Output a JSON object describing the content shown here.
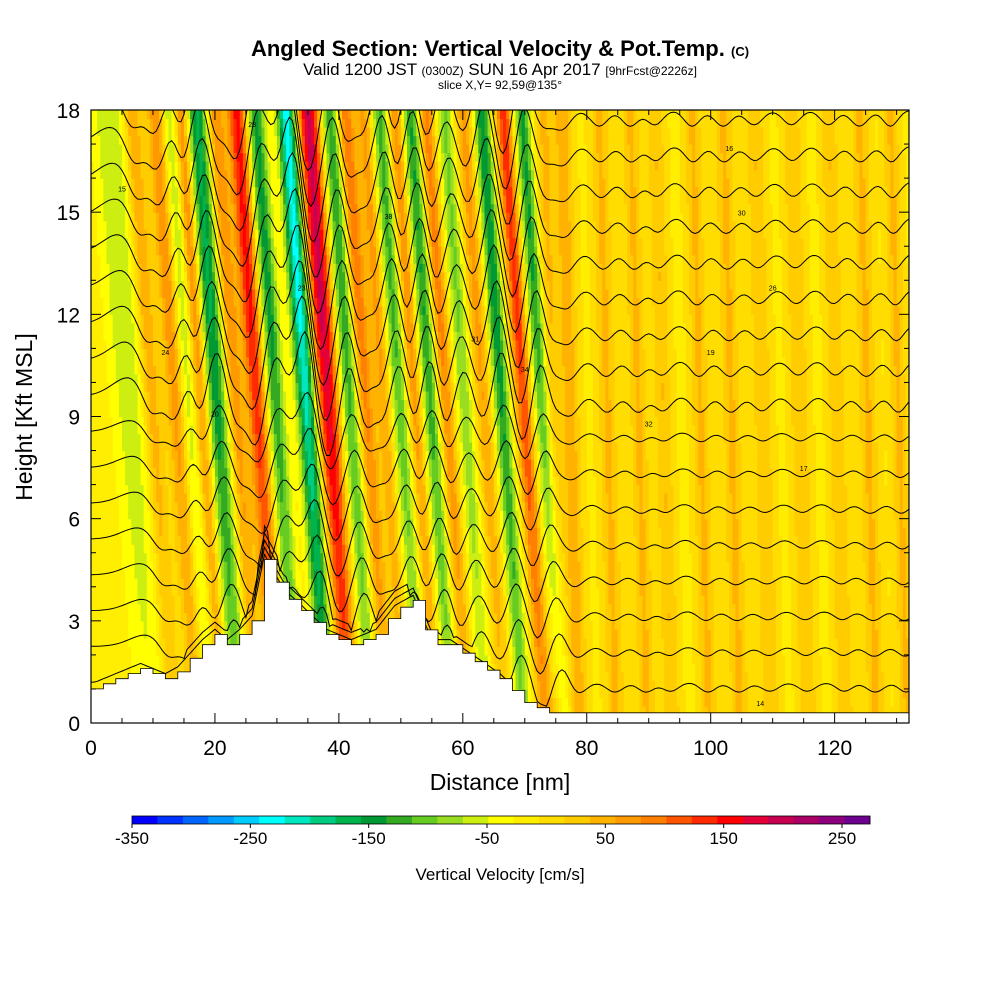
{
  "chart_data": {
    "type": "heatmap",
    "title": "Angled Section: Vertical Velocity & Pot.Temp.",
    "title_unit": "(C)",
    "subtitle_valid": "Valid 1200 JST",
    "subtitle_z": "(0300Z)",
    "subtitle_date": "SUN 16 Apr 2017",
    "subtitle_fcst": "[9hrFcst@2226z]",
    "slice": "slice X,Y= 92,59@135°",
    "xlabel": "Distance [nm]",
    "ylabel": "Height [Kft MSL]",
    "xlim": [
      0,
      132
    ],
    "ylim": [
      0,
      18
    ],
    "xticks": [
      "0",
      "20",
      "40",
      "60",
      "80",
      "100",
      "120"
    ],
    "yticks": [
      "0",
      "3",
      "6",
      "9",
      "12",
      "15",
      "18"
    ],
    "colorbar": {
      "label": "Vertical Velocity [cm/s]",
      "tick_labels": [
        "-350",
        "-250",
        "-150",
        "-50",
        "50",
        "150",
        "250"
      ],
      "colors": [
        "#0000ff",
        "#0033ff",
        "#0066ff",
        "#0099ff",
        "#00ccff",
        "#00ffff",
        "#00e6bf",
        "#00cc80",
        "#00b34d",
        "#009933",
        "#33aa22",
        "#66cc22",
        "#99dd22",
        "#ccee11",
        "#ffff00",
        "#ffee00",
        "#ffdd00",
        "#ffcc00",
        "#ffb300",
        "#ff9900",
        "#ff8000",
        "#ff5500",
        "#ff2a00",
        "#ff0000",
        "#e6003a",
        "#c80050",
        "#aa0066",
        "#8c007d",
        "#6e0090"
      ]
    },
    "velocity_bands": [
      {
        "x": 3,
        "w": 3,
        "v": -70
      },
      {
        "x": 6.5,
        "w": 1.5,
        "v": 90
      },
      {
        "x": 10.5,
        "w": 1.6,
        "v": 110
      },
      {
        "x": 12.5,
        "w": 1.5,
        "v": -90
      },
      {
        "x": 14.5,
        "w": 1.3,
        "v": 130
      },
      {
        "x": 17,
        "w": 1.8,
        "v": -180
      },
      {
        "x": 20,
        "w": 1.4,
        "v": 110
      },
      {
        "x": 23.5,
        "w": 1.6,
        "v": 190
      },
      {
        "x": 26.5,
        "w": 1.5,
        "v": -160
      },
      {
        "x": 31.5,
        "w": 1.5,
        "v": -260
      },
      {
        "x": 35,
        "w": 1.8,
        "v": 240
      },
      {
        "x": 38.5,
        "w": 1.5,
        "v": -150
      },
      {
        "x": 41,
        "w": 1.4,
        "v": 130
      },
      {
        "x": 44,
        "w": 1.3,
        "v": 90
      },
      {
        "x": 46.5,
        "w": 1.4,
        "v": -130
      },
      {
        "x": 49,
        "w": 1.2,
        "v": 110
      },
      {
        "x": 51.5,
        "w": 1.4,
        "v": -150
      },
      {
        "x": 54,
        "w": 1.3,
        "v": 120
      },
      {
        "x": 57,
        "w": 1.4,
        "v": -100
      },
      {
        "x": 60,
        "w": 1.4,
        "v": 90
      },
      {
        "x": 63,
        "w": 1.3,
        "v": -170
      },
      {
        "x": 66.5,
        "w": 1.3,
        "v": 170
      },
      {
        "x": 69.5,
        "w": 1.3,
        "v": -150
      },
      {
        "x": 73,
        "w": 1.4,
        "v": 60
      },
      {
        "x": 76,
        "w": 1.5,
        "v": 70
      },
      {
        "x": 82,
        "w": 1.5,
        "v": 60
      },
      {
        "x": 87,
        "w": 1.4,
        "v": 60
      },
      {
        "x": 91,
        "w": 1.4,
        "v": 55
      },
      {
        "x": 97,
        "w": 1.4,
        "v": 60
      },
      {
        "x": 102,
        "w": 1.5,
        "v": 60
      },
      {
        "x": 107,
        "w": 1.5,
        "v": 55
      },
      {
        "x": 113,
        "w": 1.5,
        "v": 55
      },
      {
        "x": 119,
        "w": 1.4,
        "v": 55
      },
      {
        "x": 124,
        "w": 1.5,
        "v": 60
      },
      {
        "x": 129,
        "w": 1.3,
        "v": 60
      }
    ],
    "terrain_kft": [
      [
        0,
        1.0
      ],
      [
        4,
        1.3
      ],
      [
        8,
        1.6
      ],
      [
        12,
        1.3
      ],
      [
        14,
        1.5
      ],
      [
        16,
        1.9
      ],
      [
        18,
        2.3
      ],
      [
        20,
        2.6
      ],
      [
        22,
        2.3
      ],
      [
        24,
        2.6
      ],
      [
        26,
        3.0
      ],
      [
        28,
        4.8
      ],
      [
        31,
        3.8
      ],
      [
        34,
        3.3
      ],
      [
        38,
        2.6
      ],
      [
        42,
        2.3
      ],
      [
        46,
        2.6
      ],
      [
        49,
        3.3
      ],
      [
        52,
        3.6
      ],
      [
        55,
        2.3
      ],
      [
        58,
        2.3
      ],
      [
        62,
        1.8
      ],
      [
        66,
        1.3
      ],
      [
        70,
        0.6
      ],
      [
        74,
        0.3
      ],
      [
        132,
        0.3
      ]
    ],
    "isentrope_labels": [
      "15",
      "24",
      "20",
      "28",
      "23",
      "38",
      "31",
      "34",
      "32",
      "30",
      "26",
      "16",
      "19",
      "17",
      "21",
      "14"
    ]
  }
}
